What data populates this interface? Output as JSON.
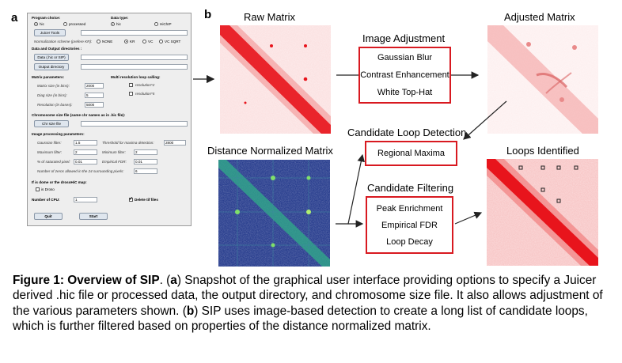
{
  "panel_a_letter": "a",
  "panel_b_letter": "b",
  "gui": {
    "program_choice_label": "Program choice:",
    "program_options": [
      "hic",
      "processed"
    ],
    "data_type_label": "Data type:",
    "data_type_options": [
      "hic",
      "HiChIP"
    ],
    "juicer_tools_button": "Juicer Tools",
    "normalization_label": "Normalization scheme (prefere KR):",
    "normalization_options": [
      "NONE",
      "KR",
      "VC",
      "VC SQRT"
    ],
    "data_output_label": "Data and Output directories :",
    "data_button": "Data (.hic or SIP)",
    "output_button": "Output directory",
    "matrix_params_label": "Matrix parameters:",
    "multi_res_label": "Multi resolution loop calling:",
    "matrix_size_label": "Matrix size (in bins):",
    "matrix_size_value": "2000",
    "diag_size_label": "Diag size (in bins):",
    "diag_size_value": "5",
    "resolution_label": "Resolution (in bases):",
    "resolution_value": "5000",
    "res_x2_label": "resolution*2",
    "res_x5_label": "resolution*5",
    "chrom_size_label": "Chromosome size file (same chr names as in .hic file):",
    "chr_size_button": "Chr size file",
    "image_params_label": "Image processing parameters:",
    "gaussian_label": "Gaussian filter:",
    "gaussian_value": "1.5",
    "threshold_label": "Threshold for maxima detection:",
    "threshold_value": "2800",
    "max_filter_label": "Maximum filter:",
    "max_filter_value": "2",
    "min_filter_label": "Minimum filter:",
    "min_filter_value": "2",
    "saturated_label": "% of saturated pixel:",
    "saturated_value": "0.01",
    "fdr_label": "Empirical FDR:",
    "fdr_value": "0.01",
    "zeros_label": "Number of zeros allowed in the 24 surrounding pixels:",
    "zeros_value": "6",
    "droso_label": "If is dome or the drosoHiC map:",
    "droso_check": "is Droso",
    "cpu_label": "Number of CPU:",
    "cpu_value": "1",
    "delete_tif_label": "Delete tif files",
    "quit_button": "Quit",
    "start_button": "Start"
  },
  "diagram": {
    "raw_matrix": "Raw Matrix",
    "adjusted_matrix": "Adjusted Matrix",
    "distance_normalized_matrix": "Distance Normalized Matrix",
    "loops_identified": "Loops Identified",
    "image_adjustment_title": "Image Adjustment",
    "image_adjustment_steps": [
      "Gaussian Blur",
      "Contrast Enhancement",
      "White Top-Hat"
    ],
    "candidate_detection_title": "Candidate Loop Detection",
    "candidate_detection_steps": [
      "Regional Maxima"
    ],
    "candidate_filtering_title": "Candidate Filtering",
    "candidate_filtering_steps": [
      "Peak Enrichment",
      "Empirical FDR",
      "Loop Decay"
    ]
  },
  "caption": {
    "bold_head": "Figure 1: Overview of SIP",
    "t1": ". (",
    "a": "a",
    "t2": ") Snapshot of the graphical user interface providing options to specify a Juicer derived .hic file or processed data, the output directory, and chromosome size file. It also allows adjustment of the various parameters shown. (",
    "b": "b",
    "t3": ") SIP uses image-based detection to create a long list of candidate loops, which is further filtered based on properties of the distance normalized matrix."
  },
  "colors": {
    "heatmap_red": "#e8141c",
    "box_border": "#d81920",
    "dn_background": "#2a3f8f",
    "dn_signal": "#7fe06a"
  }
}
